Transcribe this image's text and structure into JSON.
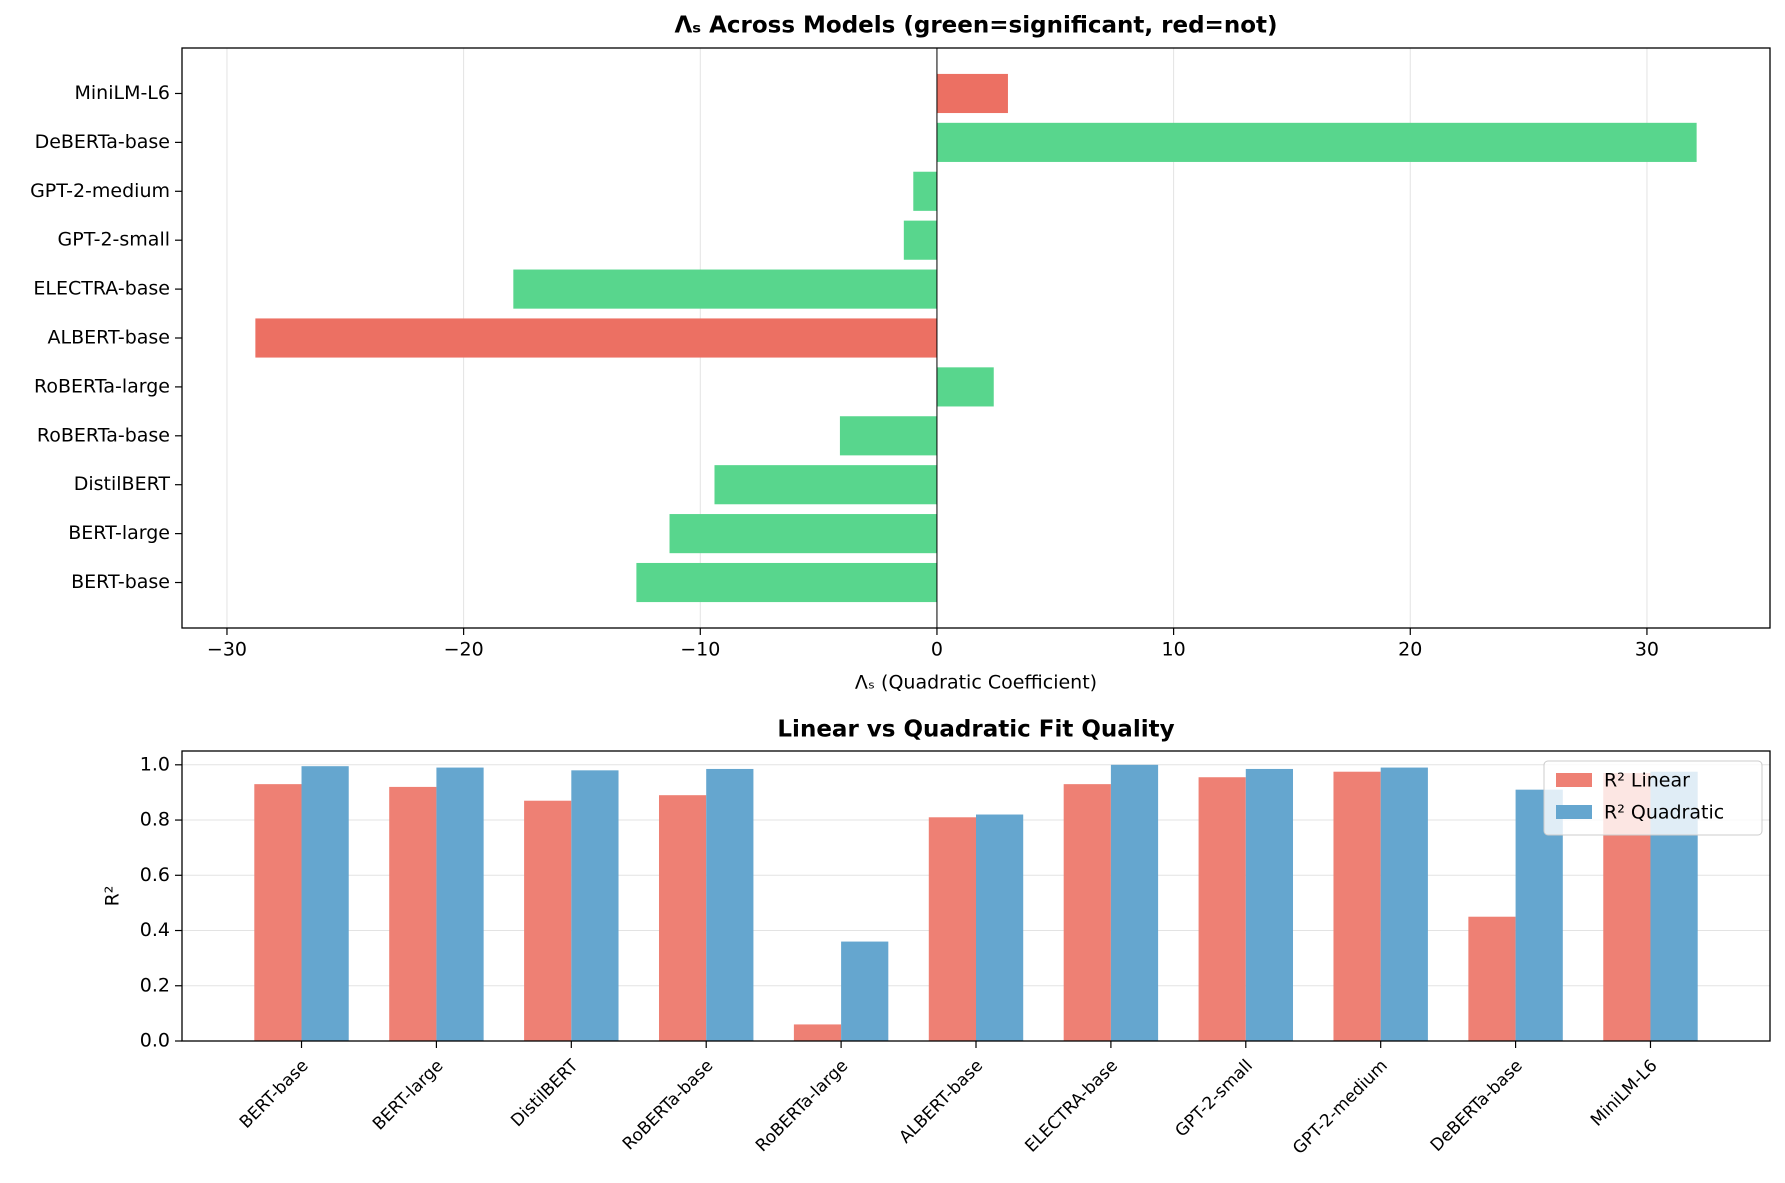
{
  "chart_data": [
    {
      "type": "barh",
      "title": "Λₛ Across Models (green=significant, red=not)",
      "x_label": "Λₛ (Quadratic Coefficient)",
      "categories": [
        "BERT-base",
        "BERT-large",
        "DistilBERT",
        "RoBERTa-base",
        "RoBERTa-large",
        "ALBERT-base",
        "ELECTRA-base",
        "GPT-2-small",
        "GPT-2-medium",
        "DeBERTa-base",
        "MiniLM-L6"
      ],
      "values": [
        -12.7,
        -11.3,
        -9.4,
        -4.1,
        2.4,
        -28.8,
        -17.9,
        -1.4,
        -1.0,
        32.1,
        3.0
      ],
      "colors": [
        "#58d68d",
        "#58d68d",
        "#58d68d",
        "#58d68d",
        "#58d68d",
        "#ec7063",
        "#58d68d",
        "#58d68d",
        "#58d68d",
        "#58d68d",
        "#ec7063"
      ],
      "xlim": [
        -31.9,
        35.2
      ],
      "xticks": [
        {
          "value": -30,
          "label": "−30"
        },
        {
          "value": -20,
          "label": "−20"
        },
        {
          "value": -10,
          "label": "−10"
        },
        0,
        10,
        20,
        30
      ],
      "grid": true
    },
    {
      "type": "bar",
      "title": "Linear vs Quadratic Fit Quality",
      "y_label": "R²",
      "categories": [
        "BERT-base",
        "BERT-large",
        "DistilBERT",
        "RoBERTa-base",
        "RoBERTa-large",
        "ALBERT-base",
        "ELECTRA-base",
        "GPT-2-small",
        "GPT-2-medium",
        "DeBERTa-base",
        "MiniLM-L6"
      ],
      "series": [
        {
          "name": "R² Linear",
          "color": "#ee8074",
          "values": [
            0.93,
            0.92,
            0.87,
            0.89,
            0.06,
            0.81,
            0.93,
            0.955,
            0.975,
            0.45,
            0.97
          ]
        },
        {
          "name": "R² Quadratic",
          "color": "#65a6cf",
          "values": [
            0.995,
            0.99,
            0.98,
            0.985,
            0.36,
            0.82,
            1.0,
            0.985,
            0.99,
            0.91,
            0.975
          ]
        }
      ],
      "ylim": [
        0,
        1.05
      ],
      "yticks": [
        {
          "value": 0,
          "label": "0.0"
        },
        {
          "value": 0.2,
          "label": "0.2"
        },
        {
          "value": 0.4,
          "label": "0.4"
        },
        {
          "value": 0.6,
          "label": "0.6"
        },
        {
          "value": 0.8,
          "label": "0.8"
        },
        {
          "value": 1,
          "label": "1.0"
        }
      ],
      "grid": true,
      "legend": "upper-right"
    }
  ]
}
